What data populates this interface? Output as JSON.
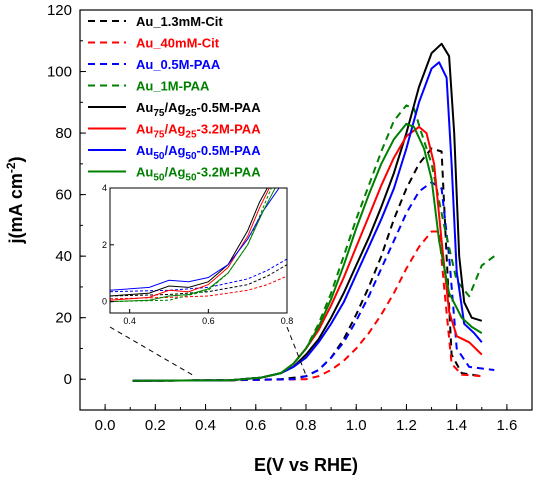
{
  "chart_data": {
    "type": "line",
    "xlabel": "E(V vs RHE)",
    "ylabel": "j(mA cm",
    "ylabel_sup": "-2",
    "ylabel_close": ")",
    "xlim": [
      -0.1,
      1.7
    ],
    "ylim": [
      -10,
      120
    ],
    "x_ticks": [
      "0.0",
      "0.2",
      "0.4",
      "0.6",
      "0.8",
      "1.0",
      "1.2",
      "1.4",
      "1.6"
    ],
    "x_tick_values": [
      0.0,
      0.2,
      0.4,
      0.6,
      0.8,
      1.0,
      1.2,
      1.4,
      1.6
    ],
    "y_ticks": [
      "0",
      "20",
      "40",
      "60",
      "80",
      "100",
      "120"
    ],
    "y_tick_values": [
      0,
      20,
      40,
      60,
      80,
      100,
      120
    ],
    "grid": false,
    "legend_position": "top-left",
    "series": [
      {
        "label": "Au_1.3mM-Cit",
        "color": "#000000",
        "dash": true,
        "points": [
          [
            0.11,
            -0.5
          ],
          [
            0.5,
            -0.3
          ],
          [
            0.7,
            0
          ],
          [
            0.8,
            1
          ],
          [
            0.85,
            3
          ],
          [
            0.9,
            7
          ],
          [
            0.95,
            13
          ],
          [
            1.0,
            21
          ],
          [
            1.05,
            30
          ],
          [
            1.1,
            40
          ],
          [
            1.15,
            52
          ],
          [
            1.2,
            62
          ],
          [
            1.25,
            70
          ],
          [
            1.3,
            75
          ],
          [
            1.34,
            74
          ],
          [
            1.36,
            40
          ],
          [
            1.38,
            8
          ],
          [
            1.42,
            2
          ],
          [
            1.5,
            1
          ]
        ]
      },
      {
        "label": "Au_40mM-Cit",
        "color": "#ff0000",
        "dash": true,
        "points": [
          [
            0.11,
            -0.5
          ],
          [
            0.5,
            -0.3
          ],
          [
            0.8,
            0
          ],
          [
            0.85,
            1
          ],
          [
            0.9,
            3
          ],
          [
            0.95,
            6
          ],
          [
            1.0,
            10
          ],
          [
            1.05,
            15
          ],
          [
            1.1,
            21
          ],
          [
            1.15,
            28
          ],
          [
            1.2,
            36
          ],
          [
            1.25,
            43
          ],
          [
            1.3,
            48
          ],
          [
            1.33,
            48
          ],
          [
            1.35,
            30
          ],
          [
            1.38,
            5
          ],
          [
            1.42,
            1.5
          ],
          [
            1.5,
            1
          ]
        ]
      },
      {
        "label": "Au_0.5M-PAA",
        "color": "#0000ff",
        "dash": true,
        "points": [
          [
            0.11,
            -0.5
          ],
          [
            0.5,
            -0.3
          ],
          [
            0.75,
            0
          ],
          [
            0.8,
            1
          ],
          [
            0.85,
            3
          ],
          [
            0.9,
            7
          ],
          [
            0.95,
            12
          ],
          [
            1.0,
            19
          ],
          [
            1.05,
            27
          ],
          [
            1.1,
            36
          ],
          [
            1.15,
            45
          ],
          [
            1.2,
            54
          ],
          [
            1.25,
            61
          ],
          [
            1.3,
            64
          ],
          [
            1.34,
            62
          ],
          [
            1.37,
            40
          ],
          [
            1.4,
            10
          ],
          [
            1.45,
            4
          ],
          [
            1.55,
            3
          ]
        ]
      },
      {
        "label": "Au_1M-PAA",
        "color": "#008000",
        "dash": true,
        "points": [
          [
            0.11,
            -0.5
          ],
          [
            0.5,
            -0.3
          ],
          [
            0.62,
            0.5
          ],
          [
            0.7,
            2
          ],
          [
            0.75,
            5
          ],
          [
            0.8,
            10
          ],
          [
            0.85,
            18
          ],
          [
            0.9,
            28
          ],
          [
            0.95,
            40
          ],
          [
            1.0,
            52
          ],
          [
            1.05,
            63
          ],
          [
            1.1,
            74
          ],
          [
            1.15,
            84
          ],
          [
            1.2,
            89
          ],
          [
            1.23,
            88
          ],
          [
            1.26,
            80
          ],
          [
            1.3,
            70
          ],
          [
            1.35,
            50
          ],
          [
            1.4,
            32
          ],
          [
            1.45,
            27
          ],
          [
            1.5,
            37
          ],
          [
            1.55,
            40
          ]
        ]
      },
      {
        "label": "Au75/Ag25-0.5M-PAA",
        "main": "Au",
        "sub1": "75",
        "mid": "/Ag",
        "sub2": "25",
        "tail": "-0.5M-PAA",
        "color": "#000000",
        "dash": false,
        "points": [
          [
            0.11,
            -0.5
          ],
          [
            0.5,
            -0.3
          ],
          [
            0.62,
            0.5
          ],
          [
            0.7,
            2
          ],
          [
            0.75,
            4
          ],
          [
            0.8,
            8
          ],
          [
            0.85,
            13
          ],
          [
            0.9,
            20
          ],
          [
            0.95,
            28
          ],
          [
            1.0,
            37
          ],
          [
            1.05,
            46
          ],
          [
            1.1,
            56
          ],
          [
            1.15,
            67
          ],
          [
            1.2,
            80
          ],
          [
            1.25,
            95
          ],
          [
            1.3,
            106
          ],
          [
            1.34,
            109
          ],
          [
            1.37,
            105
          ],
          [
            1.39,
            80
          ],
          [
            1.41,
            40
          ],
          [
            1.43,
            25
          ],
          [
            1.46,
            20
          ],
          [
            1.5,
            19
          ]
        ]
      },
      {
        "label": "Au75/Ag25-3.2M-PAA",
        "main": "Au",
        "sub1": "75",
        "mid": "/Ag",
        "sub2": "25",
        "tail": "-3.2M-PAA",
        "color": "#ff0000",
        "dash": false,
        "points": [
          [
            0.11,
            -0.5
          ],
          [
            0.5,
            -0.3
          ],
          [
            0.62,
            0.5
          ],
          [
            0.7,
            2
          ],
          [
            0.75,
            5
          ],
          [
            0.8,
            10
          ],
          [
            0.85,
            16
          ],
          [
            0.9,
            24
          ],
          [
            0.95,
            33
          ],
          [
            1.0,
            43
          ],
          [
            1.05,
            53
          ],
          [
            1.1,
            63
          ],
          [
            1.15,
            72
          ],
          [
            1.2,
            79
          ],
          [
            1.25,
            82
          ],
          [
            1.28,
            80
          ],
          [
            1.31,
            70
          ],
          [
            1.34,
            45
          ],
          [
            1.37,
            22
          ],
          [
            1.4,
            14
          ],
          [
            1.45,
            12
          ],
          [
            1.5,
            8
          ]
        ]
      },
      {
        "label": "Au50/Ag50-0.5M-PAA",
        "main": "Au",
        "sub1": "50",
        "mid": "/Ag",
        "sub2": "50",
        "tail": "-0.5M-PAA",
        "color": "#0000ff",
        "dash": false,
        "points": [
          [
            0.11,
            -0.5
          ],
          [
            0.5,
            -0.3
          ],
          [
            0.62,
            0.5
          ],
          [
            0.7,
            2
          ],
          [
            0.75,
            4
          ],
          [
            0.8,
            7
          ],
          [
            0.85,
            12
          ],
          [
            0.9,
            18
          ],
          [
            0.95,
            25
          ],
          [
            1.0,
            34
          ],
          [
            1.05,
            43
          ],
          [
            1.1,
            52
          ],
          [
            1.15,
            62
          ],
          [
            1.2,
            75
          ],
          [
            1.25,
            90
          ],
          [
            1.3,
            101
          ],
          [
            1.33,
            103
          ],
          [
            1.36,
            98
          ],
          [
            1.38,
            70
          ],
          [
            1.4,
            35
          ],
          [
            1.43,
            18
          ],
          [
            1.47,
            15
          ],
          [
            1.5,
            12
          ]
        ]
      },
      {
        "label": "Au50/Ag50-3.2M-PAA",
        "main": "Au",
        "sub1": "50",
        "mid": "/Ag",
        "sub2": "50",
        "tail": "-3.2M-PAA",
        "color": "#008000",
        "dash": false,
        "points": [
          [
            0.11,
            -0.5
          ],
          [
            0.5,
            -0.3
          ],
          [
            0.62,
            0.5
          ],
          [
            0.7,
            2
          ],
          [
            0.75,
            5
          ],
          [
            0.8,
            10
          ],
          [
            0.85,
            17
          ],
          [
            0.9,
            26
          ],
          [
            0.95,
            37
          ],
          [
            1.0,
            49
          ],
          [
            1.05,
            60
          ],
          [
            1.1,
            70
          ],
          [
            1.15,
            78
          ],
          [
            1.2,
            83
          ],
          [
            1.23,
            82
          ],
          [
            1.27,
            75
          ],
          [
            1.3,
            65
          ],
          [
            1.33,
            45
          ],
          [
            1.37,
            28
          ],
          [
            1.42,
            20
          ],
          [
            1.46,
            17
          ],
          [
            1.5,
            15
          ]
        ]
      }
    ],
    "inset": {
      "xlim": [
        0.35,
        0.8
      ],
      "ylim": [
        -0.4,
        4
      ],
      "x_ticks": [
        "0.4",
        "0.6",
        "0.8"
      ],
      "x_tick_values": [
        0.4,
        0.6,
        0.8
      ],
      "y_ticks": [
        "0",
        "2",
        "4"
      ],
      "y_tick_values": [
        0,
        2,
        4
      ],
      "series": [
        {
          "color": "#000000",
          "dash": true,
          "points": [
            [
              0.35,
              0.2
            ],
            [
              0.5,
              0.25
            ],
            [
              0.6,
              0.35
            ],
            [
              0.7,
              0.6
            ],
            [
              0.75,
              0.9
            ],
            [
              0.8,
              1.3
            ]
          ]
        },
        {
          "color": "#ff0000",
          "dash": true,
          "points": [
            [
              0.35,
              0.1
            ],
            [
              0.5,
              0.15
            ],
            [
              0.6,
              0.2
            ],
            [
              0.7,
              0.4
            ],
            [
              0.75,
              0.6
            ],
            [
              0.8,
              0.9
            ]
          ]
        },
        {
          "color": "#0000ff",
          "dash": true,
          "points": [
            [
              0.35,
              0.35
            ],
            [
              0.5,
              0.4
            ],
            [
              0.6,
              0.5
            ],
            [
              0.7,
              0.8
            ],
            [
              0.75,
              1.1
            ],
            [
              0.8,
              1.5
            ]
          ]
        },
        {
          "color": "#008000",
          "dash": true,
          "points": [
            [
              0.35,
              0.0
            ],
            [
              0.5,
              0.05
            ],
            [
              0.6,
              0.4
            ],
            [
              0.65,
              1.0
            ],
            [
              0.7,
              2.0
            ],
            [
              0.73,
              3.0
            ],
            [
              0.76,
              4.0
            ]
          ]
        },
        {
          "color": "#000000",
          "dash": false,
          "points": [
            [
              0.35,
              0.2
            ],
            [
              0.45,
              0.3
            ],
            [
              0.5,
              0.55
            ],
            [
              0.55,
              0.5
            ],
            [
              0.6,
              0.7
            ],
            [
              0.65,
              1.3
            ],
            [
              0.7,
              2.5
            ],
            [
              0.73,
              3.5
            ],
            [
              0.75,
              4.0
            ]
          ]
        },
        {
          "color": "#ff0000",
          "dash": false,
          "points": [
            [
              0.35,
              0.05
            ],
            [
              0.45,
              0.15
            ],
            [
              0.5,
              0.4
            ],
            [
              0.55,
              0.35
            ],
            [
              0.6,
              0.6
            ],
            [
              0.65,
              1.2
            ],
            [
              0.7,
              2.3
            ],
            [
              0.73,
              3.3
            ],
            [
              0.755,
              4.0
            ]
          ]
        },
        {
          "color": "#0000ff",
          "dash": false,
          "points": [
            [
              0.35,
              0.4
            ],
            [
              0.45,
              0.5
            ],
            [
              0.5,
              0.75
            ],
            [
              0.55,
              0.7
            ],
            [
              0.6,
              0.85
            ],
            [
              0.65,
              1.3
            ],
            [
              0.7,
              2.2
            ],
            [
              0.74,
              3.2
            ],
            [
              0.78,
              4.0
            ]
          ]
        },
        {
          "color": "#008000",
          "dash": false,
          "points": [
            [
              0.35,
              0.0
            ],
            [
              0.45,
              0.05
            ],
            [
              0.5,
              0.2
            ],
            [
              0.55,
              0.25
            ],
            [
              0.6,
              0.45
            ],
            [
              0.65,
              1.0
            ],
            [
              0.7,
              2.0
            ],
            [
              0.74,
              3.2
            ],
            [
              0.77,
              4.0
            ]
          ]
        }
      ]
    }
  }
}
